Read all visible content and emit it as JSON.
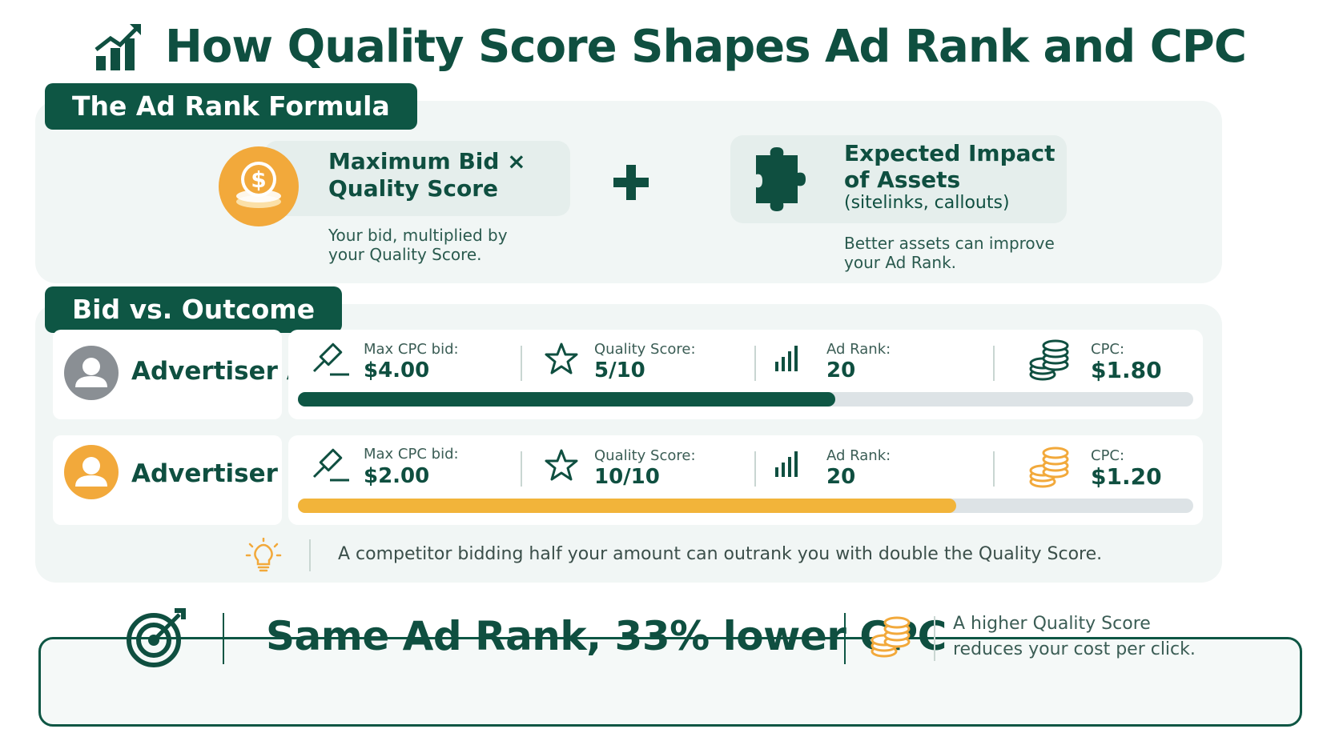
{
  "title": "How Quality Score Shapes Ad Rank and CPC",
  "formula": {
    "tab_label": "The Ad Rank Formula",
    "left_title_line1": "Maximum Bid ×",
    "left_title_line2": "Quality Score",
    "left_note_line1": "Your bid, multiplied by",
    "left_note_line2": "your Quality Score.",
    "operator": "+",
    "right_title_line1": "Expected Impact",
    "right_title_line2": "of Assets",
    "right_subtitle": "(sitelinks, callouts)",
    "right_note_line1": "Better assets can improve",
    "right_note_line2": "your Ad Rank."
  },
  "comparison": {
    "tab_label": "Bid vs. Outcome",
    "advertisers": [
      {
        "name": "Advertiser A",
        "bid_label": "Max CPC bid:",
        "bid_value": "$4.00",
        "qs_label": "Quality Score:",
        "qs_value": "5/10",
        "rank_label": "Ad Rank:",
        "rank_value": "20",
        "cpc_label": "CPC:",
        "cpc_value": "$1.80",
        "bar_fraction": 0.6,
        "color": "#0e5644"
      },
      {
        "name": "Advertiser B",
        "bid_label": "Max CPC bid:",
        "bid_value": "$2.00",
        "qs_label": "Quality Score:",
        "qs_value": "10/10",
        "rank_label": "Ad Rank:",
        "rank_value": "20",
        "cpc_label": "CPC:",
        "cpc_value": "$1.20",
        "bar_fraction": 0.735,
        "color": "#f2b43a"
      }
    ],
    "tip": "A competitor bidding half your amount can outrank you with double the Quality Score."
  },
  "summary": {
    "headline": "Same Ad Rank, 33% lower CPC",
    "note_line1": "A higher Quality Score",
    "note_line2": "reduces your cost per click."
  },
  "colors": {
    "primary": "#0e5644",
    "accent": "#f2b43a",
    "track": "#dde3e6",
    "panel": "#f1f6f5"
  },
  "icons": {
    "title": "chart-trend-icon",
    "bid": "gavel-icon",
    "quality": "star-icon",
    "rank": "signal-bars-icon",
    "cpc": "coins-icon",
    "tip": "lightbulb-icon",
    "summary": "target-icon"
  }
}
